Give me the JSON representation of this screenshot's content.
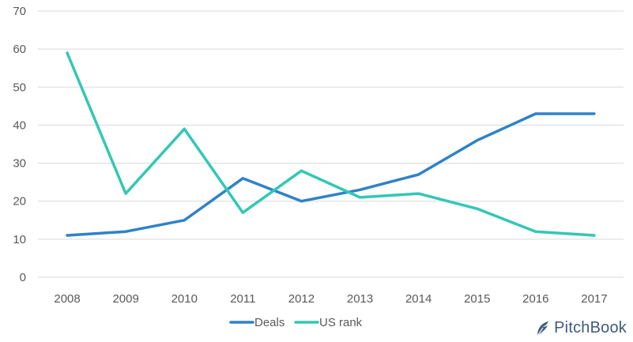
{
  "chart_data": {
    "type": "line",
    "categories": [
      "2008",
      "2009",
      "2010",
      "2011",
      "2012",
      "2013",
      "2014",
      "2015",
      "2016",
      "2017"
    ],
    "series": [
      {
        "name": "Deals",
        "values": [
          11,
          12,
          15,
          26,
          20,
          23,
          27,
          36,
          43,
          43
        ],
        "color": "#2f82c8"
      },
      {
        "name": "US rank",
        "values": [
          59,
          22,
          39,
          17,
          28,
          21,
          22,
          18,
          12,
          11
        ],
        "color": "#33c7b5"
      }
    ],
    "ylim": [
      0,
      70
    ],
    "yticks": [
      0,
      10,
      20,
      30,
      40,
      50,
      60,
      70
    ],
    "grid": true,
    "legend_position": "bottom-center",
    "title": "",
    "xlabel": "",
    "ylabel": ""
  },
  "logo": {
    "text": "PitchBook",
    "icon": "pitchbook-leaf-icon",
    "color": "#3f5a7a"
  }
}
